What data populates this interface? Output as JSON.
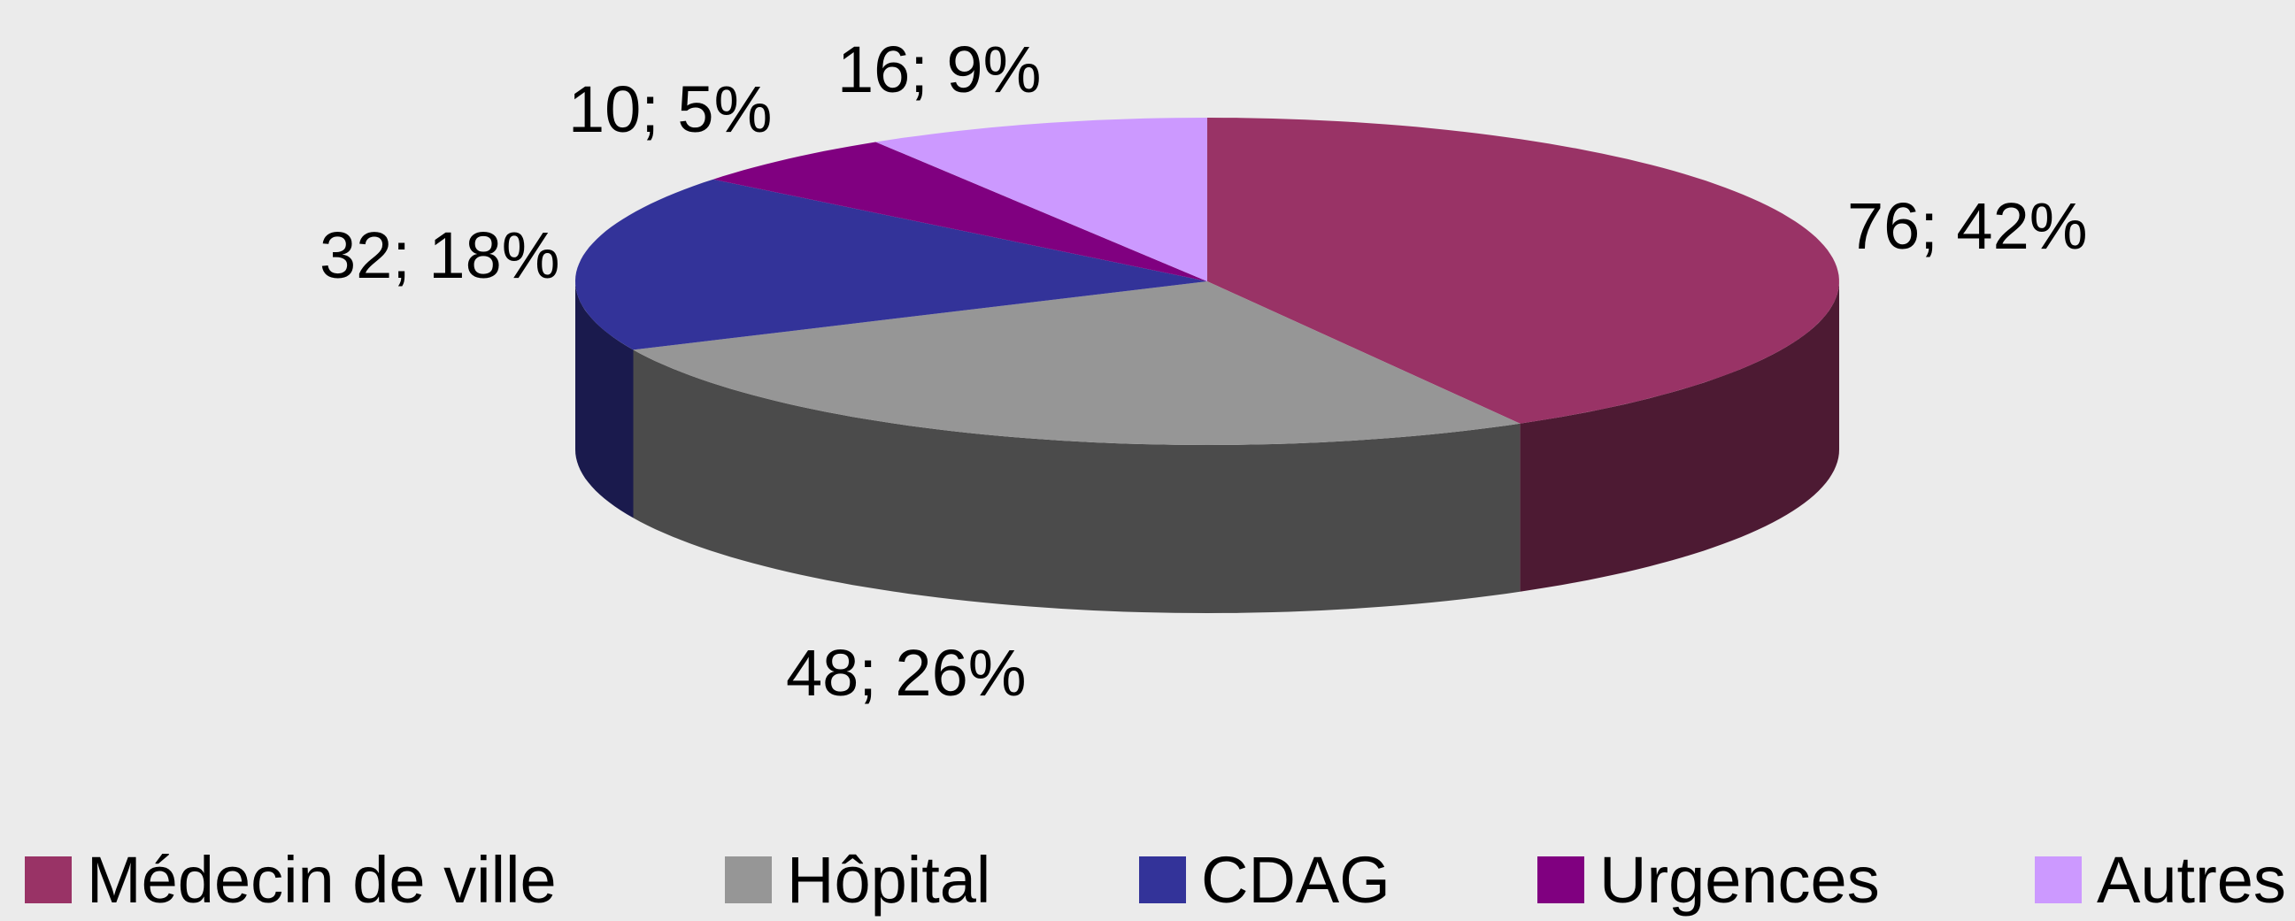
{
  "chart_data": {
    "type": "pie",
    "categories": [
      "Médecin de ville",
      "Hôpital",
      "CDAG",
      "Urgences",
      "Autres"
    ],
    "values": [
      76,
      48,
      32,
      10,
      16
    ],
    "value_labels": [
      "76; 42%",
      "48; 26%",
      "32; 18%",
      "10; 5%",
      "16; 9%"
    ],
    "colors": [
      "#993366",
      "#969696",
      "#333399",
      "#800080",
      "#cc99ff"
    ],
    "legend": "bottom"
  }
}
